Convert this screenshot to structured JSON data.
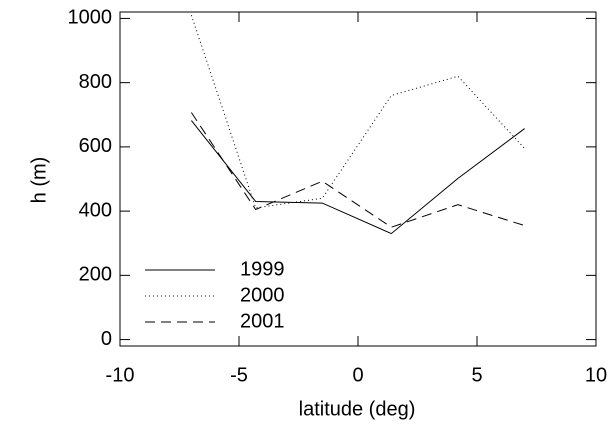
{
  "chart_data": {
    "type": "line",
    "x": [
      -7,
      -4.3,
      -1.5,
      1.4,
      4.2,
      7
    ],
    "series": [
      {
        "name": "1999",
        "color": "#000000",
        "dash": "solid",
        "values": [
          682,
          430,
          425,
          330,
          502,
          657
        ]
      },
      {
        "name": "2000",
        "color": "#000000",
        "dash": "dotted",
        "values": [
          1010,
          410,
          440,
          760,
          820,
          595
        ]
      },
      {
        "name": "2001",
        "color": "#000000",
        "dash": "dashed",
        "values": [
          707,
          405,
          493,
          350,
          420,
          355
        ]
      }
    ],
    "xlabel": "latitude (deg)",
    "ylabel": "h (m)",
    "xlim": [
      -10,
      10
    ],
    "xticks": [
      -10,
      -5,
      0,
      5,
      10
    ],
    "ylim": [
      -20,
      1020
    ],
    "yticks": [
      0,
      200,
      400,
      600,
      800,
      1000
    ],
    "legend": "lower left",
    "grid": false
  }
}
